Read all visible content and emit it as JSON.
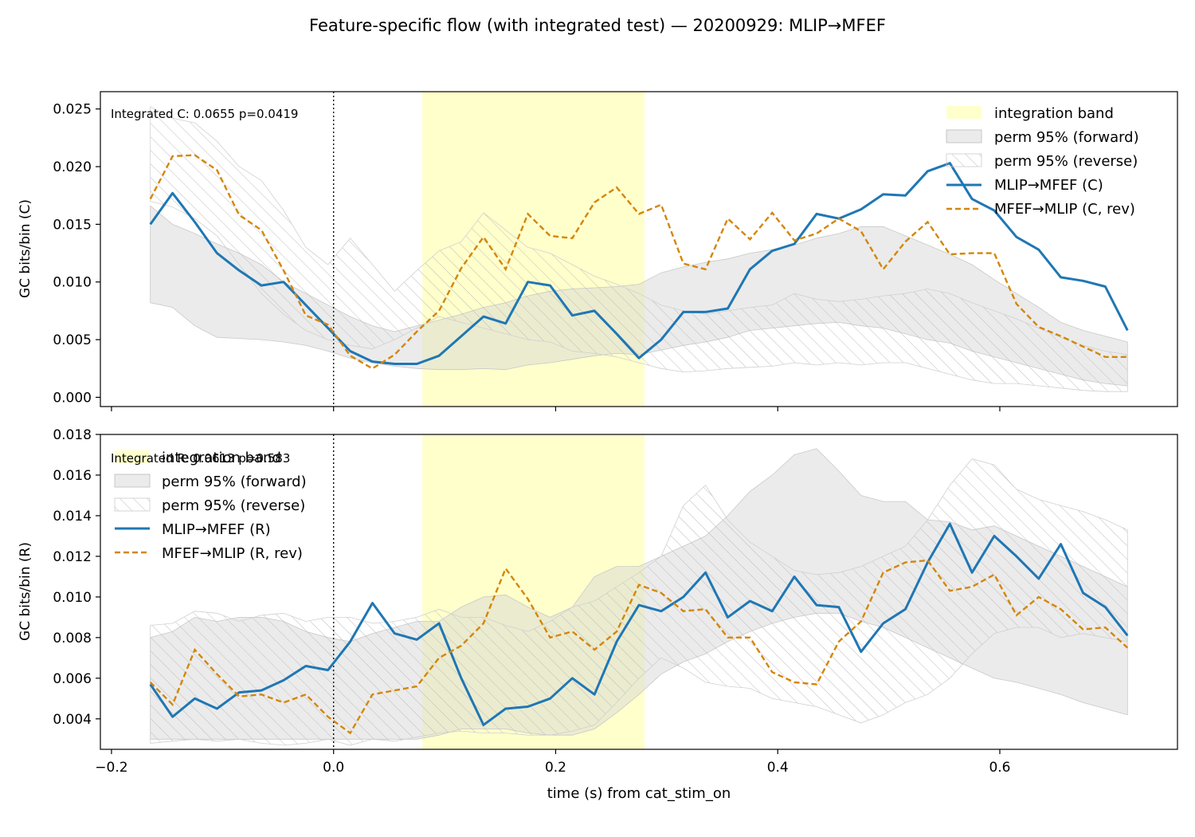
{
  "title": "Feature-specific flow (with integrated test) — 20200929: MLIP→MFEF",
  "colors": {
    "forward": "#1f77b4",
    "reverse": "#d4860a",
    "band": "#ffffcc",
    "perm_forward": "#d3d3d3",
    "perm_reverse_hatch": "#bdbdbd",
    "axis": "#000000"
  },
  "chart_data": [
    {
      "type": "line",
      "ylabel": "GC bits/bin (C)",
      "xlabel": "",
      "xlim": [
        -0.21,
        0.76
      ],
      "ylim": [
        -0.0008,
        0.0265
      ],
      "xticks": [
        -0.2,
        0.0,
        0.2,
        0.4,
        0.6
      ],
      "xtick_labels": [],
      "yticks": [
        0.0,
        0.005,
        0.01,
        0.015,
        0.02,
        0.025
      ],
      "ytick_labels": [
        "0.000",
        "0.005",
        "0.010",
        "0.015",
        "0.020",
        "0.025"
      ],
      "grid": false,
      "legend_position": "top-right",
      "annotation": "Integrated C: 0.0655  p=0.0419",
      "event_line_x": 0.0,
      "integration_band": [
        0.08,
        0.28
      ],
      "legend": [
        "integration band",
        "perm 95% (forward)",
        "perm 95% (reverse)",
        "MLIP→MFEF (C)",
        "MFEF→MLIP (C, rev)"
      ],
      "x": [
        -0.165,
        -0.145,
        -0.125,
        -0.105,
        -0.085,
        -0.065,
        -0.045,
        -0.025,
        -0.005,
        0.015,
        0.035,
        0.055,
        0.075,
        0.095,
        0.115,
        0.135,
        0.155,
        0.175,
        0.195,
        0.215,
        0.235,
        0.255,
        0.275,
        0.295,
        0.315,
        0.335,
        0.355,
        0.375,
        0.395,
        0.415,
        0.435,
        0.455,
        0.475,
        0.495,
        0.515,
        0.535,
        0.555,
        0.575,
        0.595,
        0.615,
        0.635,
        0.655,
        0.675,
        0.695,
        0.715
      ],
      "perm_forward": {
        "lower": [
          0.0082,
          0.0078,
          0.0062,
          0.0052,
          0.0051,
          0.005,
          0.0048,
          0.0045,
          0.004,
          0.0034,
          0.003,
          0.0027,
          0.0025,
          0.0024,
          0.0024,
          0.0025,
          0.0024,
          0.0028,
          0.003,
          0.0033,
          0.0036,
          0.0038,
          0.0037,
          0.0041,
          0.0045,
          0.0048,
          0.0052,
          0.0058,
          0.006,
          0.0062,
          0.0064,
          0.0065,
          0.0062,
          0.006,
          0.0055,
          0.005,
          0.0047,
          0.004,
          0.0035,
          0.003,
          0.0025,
          0.002,
          0.0015,
          0.0012,
          0.001
        ],
        "upper": [
          0.0166,
          0.015,
          0.0142,
          0.0133,
          0.0125,
          0.0115,
          0.01,
          0.009,
          0.008,
          0.007,
          0.0062,
          0.0057,
          0.0062,
          0.0067,
          0.0072,
          0.0078,
          0.0082,
          0.0088,
          0.0092,
          0.0094,
          0.0095,
          0.0096,
          0.0098,
          0.0108,
          0.0113,
          0.0117,
          0.012,
          0.0125,
          0.0128,
          0.0132,
          0.0138,
          0.0142,
          0.0148,
          0.0148,
          0.014,
          0.0132,
          0.0124,
          0.0115,
          0.0102,
          0.009,
          0.0078,
          0.0065,
          0.0058,
          0.0053,
          0.0048
        ]
      },
      "perm_reverse": {
        "lower": [
          0.017,
          0.0165,
          0.0155,
          0.014,
          0.0115,
          0.009,
          0.0072,
          0.0058,
          0.005,
          0.0045,
          0.0042,
          0.005,
          0.006,
          0.007,
          0.0065,
          0.006,
          0.0055,
          0.005,
          0.0048,
          0.004,
          0.0038,
          0.0035,
          0.003,
          0.0025,
          0.0022,
          0.0023,
          0.0025,
          0.0026,
          0.0027,
          0.003,
          0.0028,
          0.003,
          0.0028,
          0.003,
          0.003,
          0.0025,
          0.002,
          0.0015,
          0.0012,
          0.0012,
          0.001,
          0.0008,
          0.0006,
          0.0005,
          0.0005
        ],
        "upper": [
          0.0252,
          0.0242,
          0.0238,
          0.0222,
          0.02,
          0.0188,
          0.0162,
          0.013,
          0.0115,
          0.0138,
          0.0115,
          0.0092,
          0.011,
          0.0127,
          0.0135,
          0.016,
          0.0145,
          0.013,
          0.0125,
          0.0115,
          0.0105,
          0.0098,
          0.009,
          0.008,
          0.0075,
          0.0072,
          0.0075,
          0.0078,
          0.008,
          0.009,
          0.0085,
          0.0083,
          0.0085,
          0.0088,
          0.009,
          0.0094,
          0.009,
          0.0082,
          0.0075,
          0.0068,
          0.006,
          0.0052,
          0.0045,
          0.004,
          0.0037
        ]
      },
      "series": [
        {
          "name": "MLIP→MFEF (C)",
          "style": "solid",
          "values": [
            0.015,
            0.0177,
            0.0152,
            0.0125,
            0.011,
            0.0097,
            0.01,
            0.008,
            0.006,
            0.004,
            0.0031,
            0.0029,
            0.0029,
            0.0036,
            0.0053,
            0.007,
            0.0064,
            0.01,
            0.0097,
            0.0071,
            0.0075,
            0.0055,
            0.0034,
            0.005,
            0.0074,
            0.0074,
            0.0077,
            0.0111,
            0.0127,
            0.0133,
            0.0159,
            0.0155,
            0.0163,
            0.0176,
            0.0175,
            0.0196,
            0.0203,
            0.0172,
            0.0162,
            0.0139,
            0.0128,
            0.0104,
            0.0101,
            0.0096,
            0.0058
          ]
        },
        {
          "name": "MFEF→MLIP (C, rev)",
          "style": "dashed",
          "values": [
            0.0172,
            0.0209,
            0.021,
            0.0197,
            0.0158,
            0.0145,
            0.011,
            0.0071,
            0.0063,
            0.0036,
            0.0025,
            0.0037,
            0.0057,
            0.0075,
            0.0112,
            0.0139,
            0.0111,
            0.0159,
            0.014,
            0.0138,
            0.0169,
            0.0182,
            0.0159,
            0.0167,
            0.0116,
            0.0111,
            0.0155,
            0.0137,
            0.016,
            0.0136,
            0.0142,
            0.0155,
            0.0144,
            0.0111,
            0.0135,
            0.0152,
            0.0124,
            0.0125,
            0.0125,
            0.0081,
            0.0061,
            0.0053,
            0.0044,
            0.0035,
            0.0035
          ]
        }
      ]
    },
    {
      "type": "line",
      "ylabel": "GC bits/bin (R)",
      "xlabel": "time (s) from cat_stim_on",
      "xlim": [
        -0.21,
        0.76
      ],
      "ylim": [
        0.0025,
        0.018
      ],
      "xticks": [
        -0.2,
        0.0,
        0.2,
        0.4,
        0.6
      ],
      "xtick_labels": [
        "−0.2",
        "0.0",
        "0.2",
        "0.4",
        "0.6"
      ],
      "yticks": [
        0.004,
        0.006,
        0.008,
        0.01,
        0.012,
        0.014,
        0.016,
        0.018
      ],
      "ytick_labels": [
        "0.004",
        "0.006",
        "0.008",
        "0.010",
        "0.012",
        "0.014",
        "0.016",
        "0.018"
      ],
      "grid": false,
      "legend_position": "top-left",
      "annotation": "Integrated R: 0.0613  p=0.583",
      "event_line_x": 0.0,
      "integration_band": [
        0.08,
        0.28
      ],
      "legend": [
        "integration band",
        "perm 95% (forward)",
        "perm 95% (reverse)",
        "MLIP→MFEF (R)",
        "MFEF→MLIP (R, rev)"
      ],
      "x": [
        -0.165,
        -0.145,
        -0.125,
        -0.105,
        -0.085,
        -0.065,
        -0.045,
        -0.025,
        -0.005,
        0.015,
        0.035,
        0.055,
        0.075,
        0.095,
        0.115,
        0.135,
        0.155,
        0.175,
        0.195,
        0.215,
        0.235,
        0.255,
        0.275,
        0.295,
        0.315,
        0.335,
        0.355,
        0.375,
        0.395,
        0.415,
        0.435,
        0.455,
        0.475,
        0.495,
        0.515,
        0.535,
        0.555,
        0.575,
        0.595,
        0.615,
        0.635,
        0.655,
        0.675,
        0.695,
        0.715
      ],
      "perm_forward": {
        "lower": [
          0.003,
          0.003,
          0.003,
          0.003,
          0.003,
          0.003,
          0.003,
          0.003,
          0.003,
          0.003,
          0.003,
          0.003,
          0.003,
          0.0032,
          0.0035,
          0.0035,
          0.0035,
          0.0033,
          0.0032,
          0.0032,
          0.0035,
          0.0043,
          0.0052,
          0.0062,
          0.0068,
          0.0072,
          0.0078,
          0.0083,
          0.0087,
          0.009,
          0.0092,
          0.0092,
          0.0088,
          0.0085,
          0.008,
          0.0075,
          0.007,
          0.0065,
          0.006,
          0.0058,
          0.0055,
          0.0052,
          0.0048,
          0.0045,
          0.0042
        ],
        "upper": [
          0.008,
          0.0083,
          0.009,
          0.0088,
          0.009,
          0.009,
          0.0088,
          0.0083,
          0.008,
          0.0078,
          0.0082,
          0.0085,
          0.0088,
          0.0088,
          0.0095,
          0.01,
          0.0101,
          0.0095,
          0.009,
          0.0095,
          0.011,
          0.0115,
          0.0115,
          0.012,
          0.0125,
          0.013,
          0.014,
          0.0152,
          0.016,
          0.017,
          0.0173,
          0.0162,
          0.015,
          0.0147,
          0.0147,
          0.0138,
          0.0137,
          0.0133,
          0.0135,
          0.013,
          0.0125,
          0.012,
          0.0115,
          0.011,
          0.0105
        ]
      },
      "perm_reverse": {
        "lower": [
          0.0028,
          0.0029,
          0.003,
          0.0029,
          0.003,
          0.0028,
          0.0027,
          0.0028,
          0.003,
          0.0027,
          0.003,
          0.0029,
          0.0031,
          0.0033,
          0.0034,
          0.0033,
          0.0033,
          0.0032,
          0.0032,
          0.0034,
          0.0037,
          0.0048,
          0.006,
          0.007,
          0.0065,
          0.0058,
          0.0056,
          0.0055,
          0.005,
          0.0048,
          0.0046,
          0.0042,
          0.0038,
          0.0042,
          0.0048,
          0.0052,
          0.006,
          0.0072,
          0.0082,
          0.0085,
          0.0085,
          0.008,
          0.0082,
          0.008,
          0.0078
        ],
        "upper": [
          0.0086,
          0.0087,
          0.0093,
          0.0092,
          0.0088,
          0.0091,
          0.0092,
          0.0088,
          0.009,
          0.009,
          0.0087,
          0.0088,
          0.009,
          0.0094,
          0.009,
          0.009,
          0.0086,
          0.0083,
          0.0088,
          0.0095,
          0.0098,
          0.0105,
          0.0112,
          0.012,
          0.0145,
          0.0155,
          0.0138,
          0.0127,
          0.012,
          0.0113,
          0.0111,
          0.0112,
          0.0115,
          0.012,
          0.0125,
          0.0138,
          0.0155,
          0.0168,
          0.0165,
          0.0153,
          0.0148,
          0.0145,
          0.0142,
          0.0138,
          0.0133
        ]
      },
      "series": [
        {
          "name": "MLIP→MFEF (R)",
          "style": "solid",
          "values": [
            0.0057,
            0.0041,
            0.005,
            0.0045,
            0.0053,
            0.0054,
            0.0059,
            0.0066,
            0.0064,
            0.0078,
            0.0097,
            0.0082,
            0.0079,
            0.0087,
            0.006,
            0.0037,
            0.0045,
            0.0046,
            0.005,
            0.006,
            0.0052,
            0.0078,
            0.0096,
            0.0093,
            0.01,
            0.0112,
            0.009,
            0.0098,
            0.0093,
            0.011,
            0.0096,
            0.0095,
            0.0073,
            0.0087,
            0.0094,
            0.0117,
            0.0136,
            0.0112,
            0.013,
            0.012,
            0.0109,
            0.0126,
            0.0102,
            0.0095,
            0.0081
          ]
        },
        {
          "name": "MFEF→MLIP (R, rev)",
          "style": "dashed",
          "values": [
            0.0058,
            0.0047,
            0.0074,
            0.0062,
            0.0051,
            0.0052,
            0.0048,
            0.0052,
            0.0041,
            0.0033,
            0.0052,
            0.0054,
            0.0056,
            0.007,
            0.0076,
            0.0087,
            0.0114,
            0.0099,
            0.008,
            0.0083,
            0.0074,
            0.0083,
            0.0106,
            0.0102,
            0.0093,
            0.0094,
            0.008,
            0.008,
            0.0063,
            0.0058,
            0.0057,
            0.0078,
            0.0088,
            0.0112,
            0.0117,
            0.0118,
            0.0103,
            0.0105,
            0.0111,
            0.0091,
            0.01,
            0.0094,
            0.0084,
            0.0085,
            0.0075
          ]
        }
      ]
    }
  ]
}
